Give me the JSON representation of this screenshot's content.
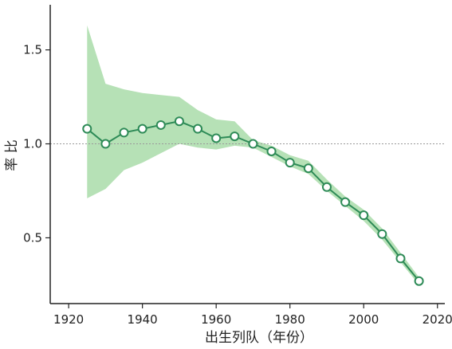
{
  "chart_data": {
    "type": "line",
    "title": "",
    "xlabel": "出生列队（年份）",
    "ylabel": "率 比",
    "xlim": [
      1915,
      2022
    ],
    "ylim": [
      0.15,
      1.74
    ],
    "x_ticks": [
      "1920",
      "1940",
      "1960",
      "1980",
      "2000",
      "2020"
    ],
    "y_ticks": [
      "0.5",
      "1.0",
      "1.5"
    ],
    "reference_line": 1.0,
    "grid": false,
    "legend": "none",
    "series": [
      {
        "x": [
          1925,
          1930,
          1935,
          1940,
          1945,
          1950,
          1955,
          1960,
          1965,
          1970,
          1975,
          1980,
          1985,
          1990,
          1995,
          2000,
          2005,
          2010,
          2015
        ],
        "y": [
          1.08,
          1.0,
          1.06,
          1.08,
          1.1,
          1.12,
          1.08,
          1.03,
          1.04,
          1.0,
          0.96,
          0.9,
          0.87,
          0.77,
          0.69,
          0.62,
          0.52,
          0.39,
          0.27
        ],
        "ci_lower": [
          0.71,
          0.76,
          0.86,
          0.9,
          0.95,
          1.0,
          0.98,
          0.97,
          0.99,
          0.98,
          0.93,
          0.88,
          0.84,
          0.75,
          0.67,
          0.59,
          0.49,
          0.37,
          0.25
        ],
        "ci_upper": [
          1.63,
          1.32,
          1.29,
          1.27,
          1.26,
          1.25,
          1.18,
          1.13,
          1.12,
          1.02,
          0.99,
          0.94,
          0.91,
          0.81,
          0.72,
          0.65,
          0.55,
          0.42,
          0.29
        ]
      }
    ],
    "colors": {
      "line": "#2e8b57",
      "band": "#a9dca9",
      "marker_fill": "#ffffff",
      "reference": "#999999",
      "axis": "#222222"
    }
  }
}
